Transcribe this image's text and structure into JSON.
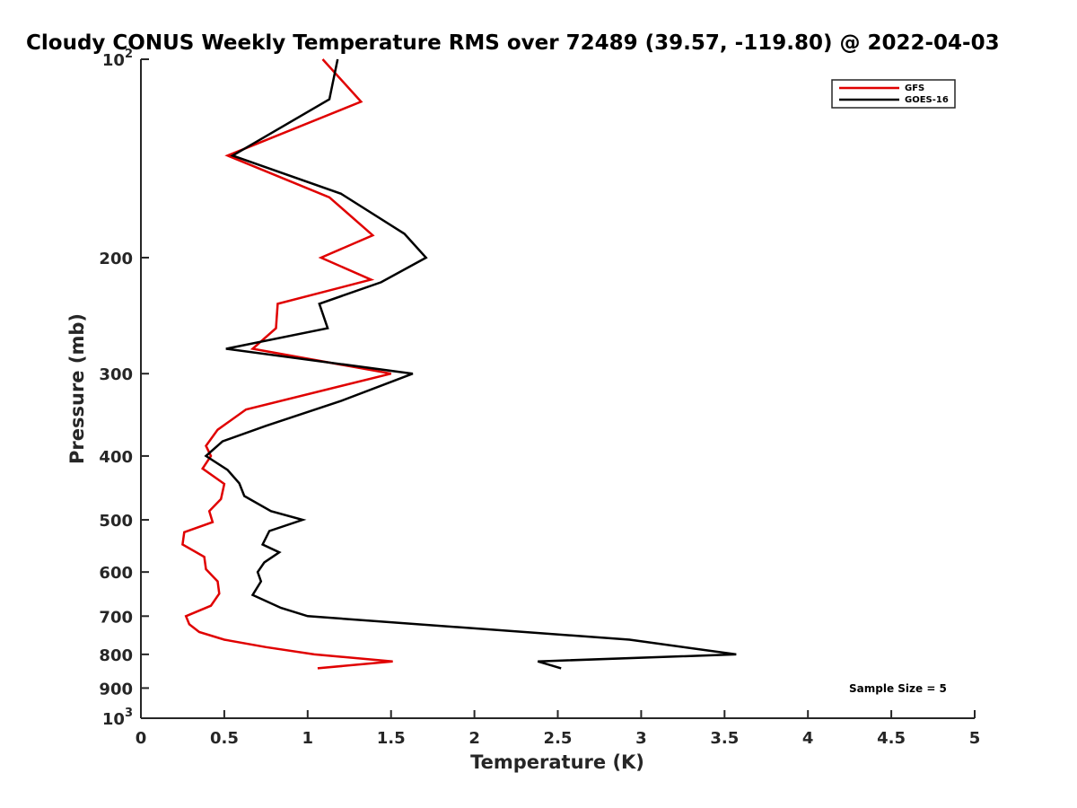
{
  "chart_data": {
    "type": "line",
    "title": "Cloudy CONUS Weekly Temperature RMS over 72489 (39.57, -119.80) @ 2022-04-03",
    "xlabel": "Temperature (K)",
    "ylabel": "Pressure (mb)",
    "xlim": [
      0,
      5
    ],
    "ylim": [
      100,
      1000
    ],
    "yscale": "log",
    "y_reversed": true,
    "x_ticks": [
      "0",
      "0.5",
      "1",
      "1.5",
      "2",
      "2.5",
      "3",
      "3.5",
      "4",
      "4.5",
      "5"
    ],
    "y_ticks": [
      {
        "value": 100,
        "base": "10",
        "exp": "2"
      },
      {
        "value": 200,
        "label": "200"
      },
      {
        "value": 300,
        "label": "300"
      },
      {
        "value": 400,
        "label": "400"
      },
      {
        "value": 500,
        "label": "500"
      },
      {
        "value": 600,
        "label": "600"
      },
      {
        "value": 700,
        "label": "700"
      },
      {
        "value": 800,
        "label": "800"
      },
      {
        "value": 900,
        "label": "900"
      },
      {
        "value": 1000,
        "base": "10",
        "exp": "3"
      }
    ],
    "grid": false,
    "legend_position": "top-right",
    "annotation": "Sample Size = 5",
    "series": [
      {
        "name": "GFS",
        "color": "#e00000",
        "x": [
          1.09,
          1.32,
          0.52,
          1.13,
          1.39,
          1.08,
          1.38,
          0.82,
          0.81,
          0.67,
          1.5,
          0.63,
          0.46,
          0.39,
          0.42,
          0.37,
          0.5,
          0.48,
          0.41,
          0.43,
          0.26,
          0.25,
          0.38,
          0.39,
          0.46,
          0.47,
          0.42,
          0.27,
          0.29,
          0.35,
          0.5,
          0.75,
          1.04,
          1.51,
          1.06
        ],
        "y": [
          100,
          116,
          140,
          162,
          185,
          200,
          216,
          235,
          256,
          275,
          300,
          340,
          365,
          386,
          400,
          418,
          441,
          465,
          485,
          504,
          522,
          545,
          569,
          594,
          620,
          647,
          675,
          700,
          720,
          740,
          760,
          780,
          800,
          820,
          840
        ]
      },
      {
        "name": "GOES-16",
        "color": "#000000",
        "x": [
          1.18,
          1.13,
          0.55,
          1.2,
          1.58,
          1.71,
          1.44,
          1.07,
          1.12,
          0.51,
          1.63,
          1.2,
          0.75,
          0.49,
          0.39,
          0.52,
          0.59,
          0.62,
          0.78,
          0.97,
          0.77,
          0.73,
          0.83,
          0.74,
          0.7,
          0.72,
          0.67,
          0.84,
          1.0,
          2.93,
          3.57,
          2.38,
          2.52
        ],
        "y": [
          100,
          115,
          140,
          160,
          184,
          200,
          218,
          235,
          256,
          275,
          300,
          330,
          360,
          380,
          400,
          420,
          440,
          460,
          485,
          500,
          520,
          545,
          560,
          580,
          600,
          620,
          650,
          680,
          700,
          760,
          800,
          820,
          840
        ]
      }
    ]
  }
}
